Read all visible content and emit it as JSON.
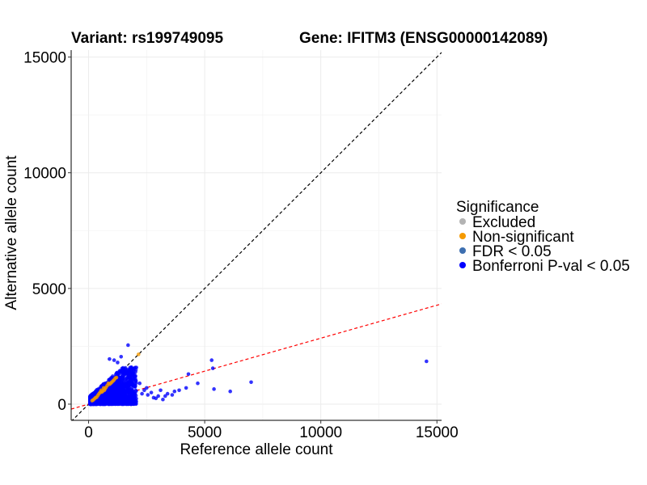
{
  "chart_data": {
    "type": "scatter",
    "title_left": "Variant: rs199749095",
    "title_right": "Gene: IFITM3 (ENSG00000142089)",
    "xlabel": "Reference allele count",
    "ylabel": "Alternative allele count",
    "xlim": [
      -750,
      15200
    ],
    "ylim": [
      -700,
      15300
    ],
    "x_ticks": [
      0,
      5000,
      10000,
      15000
    ],
    "y_ticks": [
      0,
      5000,
      10000,
      15000
    ],
    "x_tick_labels": [
      "0",
      "5000",
      "10000",
      "15000"
    ],
    "y_tick_labels": [
      "0",
      "5000",
      "10000",
      "15000"
    ],
    "grid": true,
    "legend": {
      "title": "Significance",
      "placement": "right",
      "entries": [
        {
          "label": "Excluded",
          "color": "#b3b3b3"
        },
        {
          "label": "Non-significant",
          "color": "#f59a00"
        },
        {
          "label": "FDR < 0.05",
          "color": "#3d6fb0"
        },
        {
          "label": "Bonferroni P-val < 0.05",
          "color": "#0000ff"
        }
      ]
    },
    "reference_lines": [
      {
        "kind": "identity",
        "slope": 1,
        "intercept": 0,
        "color": "#000000",
        "style": "dashed"
      },
      {
        "kind": "fit",
        "slope": 0.285,
        "intercept": 0,
        "color": "#ff0000",
        "style": "dashed"
      }
    ],
    "series": [
      {
        "name": "Bonferroni P-val < 0.05",
        "color": "#0000ff",
        "points": [
          [
            14550,
            1850
          ],
          [
            5300,
            1900
          ],
          [
            5350,
            1550
          ],
          [
            7000,
            950
          ],
          [
            6100,
            550
          ],
          [
            5400,
            650
          ],
          [
            4700,
            900
          ],
          [
            4300,
            1300
          ],
          [
            3700,
            550
          ],
          [
            3400,
            450
          ],
          [
            3000,
            350
          ],
          [
            2800,
            280
          ],
          [
            2550,
            400
          ],
          [
            4200,
            700
          ],
          [
            3900,
            600
          ],
          [
            1700,
            2550
          ],
          [
            1400,
            2050
          ],
          [
            1250,
            1800
          ],
          [
            1100,
            1900
          ],
          [
            900,
            1950
          ],
          [
            1600,
            1500
          ],
          [
            1800,
            1200
          ],
          [
            2200,
            900
          ],
          [
            2000,
            750
          ],
          [
            2500,
            700
          ],
          [
            2400,
            600
          ],
          [
            1900,
            500
          ],
          [
            2300,
            450
          ],
          [
            2700,
            500
          ],
          [
            3100,
            600
          ],
          [
            3300,
            350
          ],
          [
            3600,
            400
          ],
          [
            2900,
            250
          ],
          [
            3200,
            200
          ]
        ],
        "cluster": {
          "x_max": 2000,
          "y_max": 1600,
          "count": 1600
        }
      },
      {
        "name": "Non-significant",
        "color": "#f59a00",
        "points": [
          [
            2150,
            2150
          ],
          [
            1200,
            1150
          ],
          [
            1050,
            1000
          ],
          [
            950,
            900
          ],
          [
            850,
            900
          ],
          [
            800,
            800
          ],
          [
            700,
            650
          ],
          [
            650,
            700
          ],
          [
            600,
            550
          ],
          [
            550,
            600
          ],
          [
            450,
            450
          ],
          [
            400,
            380
          ],
          [
            350,
            300
          ],
          [
            300,
            280
          ],
          [
            250,
            230
          ],
          [
            200,
            180
          ],
          [
            150,
            150
          ],
          [
            500,
            520
          ],
          [
            750,
            720
          ],
          [
            900,
            860
          ],
          [
            1000,
            950
          ],
          [
            1100,
            1050
          ],
          [
            1150,
            1120
          ],
          [
            680,
            600
          ],
          [
            560,
            520
          ]
        ]
      }
    ]
  }
}
